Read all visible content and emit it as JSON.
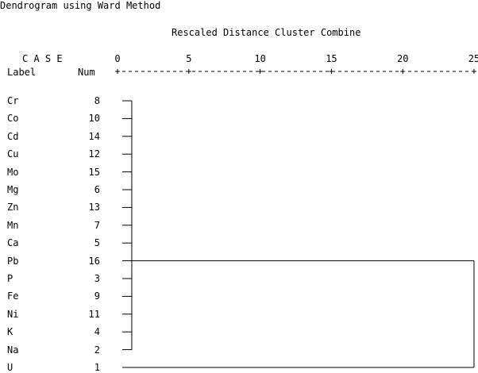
{
  "title": "Dendrogram using Ward Method",
  "axis_title": "Rescaled Distance Cluster Combine",
  "case_header": "C A S E",
  "col_label": "Label",
  "col_num": "Num",
  "ruler": "+---------+---------+---------+---------+---------+",
  "chart_data": {
    "type": "dendrogram",
    "method": "Ward",
    "xlim": [
      0,
      25
    ],
    "ticks": [
      0,
      5,
      10,
      15,
      20,
      25
    ],
    "tick_labels": [
      "0",
      "5",
      "10",
      "15",
      "20",
      "25"
    ],
    "cases": [
      {
        "label": "Cr",
        "num": "8"
      },
      {
        "label": "Co",
        "num": "10"
      },
      {
        "label": "Cd",
        "num": "14"
      },
      {
        "label": "Cu",
        "num": "12"
      },
      {
        "label": "Mo",
        "num": "15"
      },
      {
        "label": "Mg",
        "num": "6"
      },
      {
        "label": "Zn",
        "num": "13"
      },
      {
        "label": "Mn",
        "num": "7"
      },
      {
        "label": "Ca",
        "num": "5"
      },
      {
        "label": "Pb",
        "num": "16"
      },
      {
        "label": "P",
        "num": "3"
      },
      {
        "label": "Fe",
        "num": "9"
      },
      {
        "label": "Ni",
        "num": "11"
      },
      {
        "label": "K",
        "num": "4"
      },
      {
        "label": "Na",
        "num": "2"
      },
      {
        "label": "U",
        "num": "1"
      }
    ],
    "merges": [
      {
        "members": "cases 0-14",
        "distance": 1
      },
      {
        "members": "cluster + U",
        "distance": 25
      }
    ]
  }
}
